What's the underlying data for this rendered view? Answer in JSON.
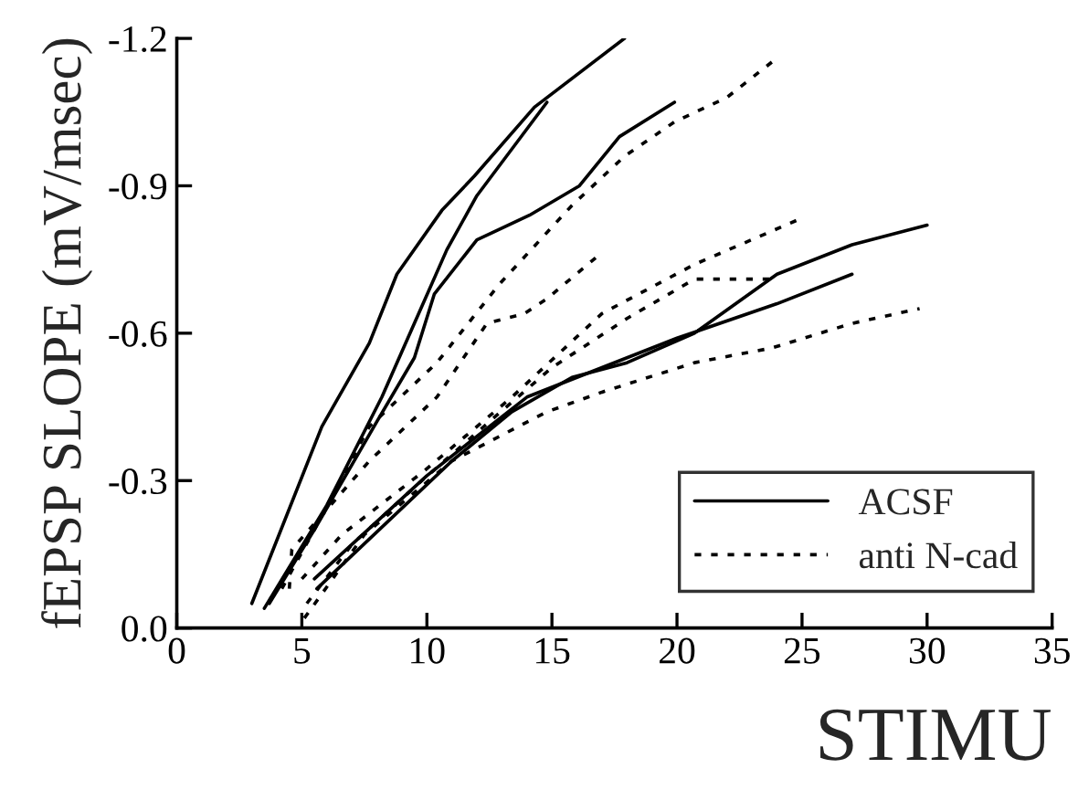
{
  "chart_data": {
    "type": "line",
    "xlabel": "STIMU",
    "ylabel": "fEPSP SLOPE (mV/msec)",
    "xlim": [
      0,
      35
    ],
    "xticks": [
      0,
      5,
      10,
      15,
      20,
      25,
      30,
      35
    ],
    "ylim": [
      0,
      -1.2
    ],
    "yticks": [
      {
        "value": 0,
        "label": "0.0"
      },
      {
        "value": -0.3,
        "label": "-0.3"
      },
      {
        "value": -0.6,
        "label": "-0.6"
      },
      {
        "value": -0.9,
        "label": "-0.9"
      },
      {
        "value": -1.2,
        "label": "-1.2"
      }
    ],
    "grid": false,
    "legend": "bottom right",
    "marker": "none",
    "series": [
      {
        "name": "ACSF",
        "color": "#000000",
        "line_style": "solid",
        "x": [
          3.0,
          5.8,
          7.7,
          8.8,
          10.6,
          11.9,
          14.3,
          17.9
        ],
        "values": [
          -0.05,
          -0.41,
          -0.58,
          -0.72,
          -0.85,
          -0.92,
          -1.06,
          -1.2
        ]
      },
      {
        "color": "#000000",
        "line_style": "solid",
        "x": [
          3.5,
          6,
          8.2,
          9.5,
          10.8,
          12,
          14.8
        ],
        "values": [
          -0.04,
          -0.25,
          -0.47,
          -0.62,
          -0.77,
          -0.88,
          -1.07
        ]
      },
      {
        "color": "#000000",
        "line_style": "solid",
        "x": [
          3.7,
          5.5,
          8,
          9.5,
          10.3,
          12,
          14.1,
          16.1,
          17.7,
          19.9
        ],
        "values": [
          -0.05,
          -0.2,
          -0.42,
          -0.55,
          -0.68,
          -0.79,
          -0.84,
          -0.9,
          -1.0,
          -1.07
        ]
      },
      {
        "color": "#000000",
        "line_style": "solid",
        "x": [
          5.6,
          11,
          13.4,
          15.8,
          18,
          20.7,
          24,
          27,
          30
        ],
        "values": [
          -0.08,
          -0.34,
          -0.44,
          -0.51,
          -0.54,
          -0.6,
          -0.72,
          -0.78,
          -0.82
        ]
      },
      {
        "color": "#000000",
        "line_style": "solid",
        "x": [
          5.5,
          10,
          14,
          17,
          20,
          24,
          27
        ],
        "values": [
          -0.1,
          -0.31,
          -0.47,
          -0.53,
          -0.59,
          -0.66,
          -0.72
        ]
      },
      {
        "name": "anti N-cad",
        "color": "#000000",
        "line_style": "dotted",
        "x": [
          4.2,
          5.5,
          7.7,
          10.4,
          12.9,
          15.8,
          17.9,
          19.9,
          22,
          24
        ],
        "values": [
          -0.08,
          -0.2,
          -0.41,
          -0.54,
          -0.7,
          -0.86,
          -0.96,
          -1.03,
          -1.08,
          -1.16
        ]
      },
      {
        "color": "#000000",
        "line_style": "dotted",
        "x": [
          4.5,
          4.6,
          7.7,
          10.4,
          12.4,
          13.9,
          14.8,
          16.9
        ],
        "values": [
          -0.08,
          -0.16,
          -0.34,
          -0.47,
          -0.62,
          -0.64,
          -0.67,
          -0.76
        ]
      },
      {
        "color": "#000000",
        "line_style": "dotted",
        "x": [
          5,
          6.6,
          9.9,
          13.4,
          17,
          20.7,
          24.8
        ],
        "values": [
          -0.1,
          -0.19,
          -0.32,
          -0.47,
          -0.64,
          -0.74,
          -0.83
        ]
      },
      {
        "color": "#000000",
        "line_style": "dotted",
        "x": [
          5.2,
          7,
          9.8,
          12.5,
          15,
          18,
          20.7,
          23.8
        ],
        "values": [
          -0.05,
          -0.17,
          -0.3,
          -0.42,
          -0.53,
          -0.63,
          -0.71,
          -0.71
        ]
      },
      {
        "color": "#000000",
        "line_style": "dotted",
        "x": [
          5.1,
          7.5,
          11,
          14.8,
          17,
          20.7,
          23.8,
          27,
          29.7
        ],
        "values": [
          -0.02,
          -0.19,
          -0.34,
          -0.44,
          -0.48,
          -0.54,
          -0.57,
          -0.62,
          -0.65
        ]
      }
    ]
  }
}
